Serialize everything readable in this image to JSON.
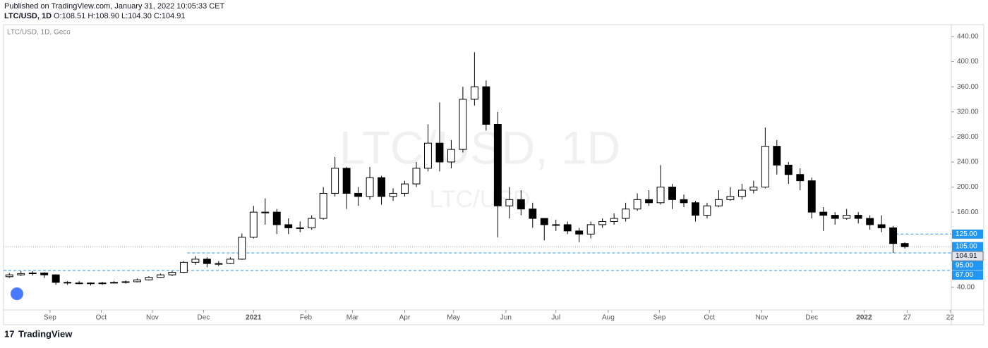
{
  "header": {
    "published": "Published on TradingView.com, January 31, 2022 10:05:33 CET",
    "symbol": "LTC/USD, 1D",
    "ohlc": "O:108.51 H:108.90 L:104.30 C:104.91"
  },
  "chart_data": {
    "type": "candlestick",
    "legend": "LTC/USD, 1D, Geco",
    "watermark": "LTC/USD, 1D",
    "watermark_sub": "LTC/USD",
    "up_color": "#ffffff",
    "down_color": "#000000",
    "outline_color": "#000000",
    "open": [
      57,
      60,
      62,
      63,
      60,
      48,
      47,
      47,
      46,
      47,
      48,
      49,
      52,
      56,
      60,
      64,
      80,
      85,
      78,
      78,
      85,
      120,
      160,
      160,
      140,
      135,
      135,
      150,
      190,
      230,
      190,
      185,
      215,
      185,
      190,
      205,
      230,
      270,
      240,
      260,
      340,
      360,
      300,
      170,
      180,
      165,
      150,
      140,
      140,
      130,
      125,
      140,
      145,
      150,
      165,
      180,
      175,
      200,
      180,
      175,
      155,
      170,
      180,
      185,
      195,
      200,
      265,
      235,
      220,
      210,
      160,
      155,
      150,
      155,
      150,
      140,
      135,
      110
    ],
    "high": [
      63,
      66,
      66,
      64,
      61,
      50,
      50,
      48,
      49,
      50,
      51,
      54,
      58,
      62,
      66,
      82,
      90,
      88,
      82,
      88,
      126,
      170,
      182,
      165,
      150,
      145,
      155,
      200,
      248,
      232,
      200,
      232,
      218,
      198,
      210,
      240,
      300,
      335,
      275,
      360,
      415,
      370,
      320,
      200,
      195,
      175,
      150,
      148,
      145,
      135,
      145,
      150,
      158,
      175,
      190,
      195,
      235,
      205,
      188,
      178,
      175,
      195,
      200,
      205,
      210,
      295,
      275,
      240,
      230,
      215,
      168,
      160,
      165,
      160,
      155,
      155,
      138,
      112
    ],
    "low": [
      55,
      58,
      59,
      55,
      44,
      44,
      45,
      43,
      44,
      46,
      46,
      48,
      51,
      55,
      58,
      63,
      76,
      72,
      74,
      77,
      84,
      118,
      140,
      125,
      125,
      128,
      132,
      148,
      185,
      165,
      170,
      180,
      172,
      178,
      185,
      200,
      225,
      225,
      230,
      255,
      330,
      290,
      120,
      150,
      155,
      135,
      115,
      130,
      125,
      112,
      118,
      135,
      140,
      145,
      162,
      170,
      172,
      165,
      168,
      145,
      150,
      168,
      178,
      180,
      190,
      198,
      220,
      205,
      195,
      150,
      130,
      140,
      148,
      142,
      132,
      128,
      95,
      102
    ],
    "close": [
      60,
      62,
      63,
      60,
      48,
      47,
      47,
      46,
      47,
      48,
      49,
      52,
      56,
      60,
      64,
      80,
      85,
      78,
      78,
      85,
      120,
      160,
      160,
      140,
      135,
      135,
      150,
      190,
      230,
      190,
      185,
      215,
      185,
      190,
      205,
      230,
      270,
      240,
      260,
      340,
      360,
      300,
      170,
      180,
      165,
      150,
      140,
      140,
      130,
      125,
      140,
      145,
      150,
      165,
      180,
      175,
      200,
      180,
      175,
      155,
      170,
      180,
      185,
      195,
      200,
      265,
      235,
      220,
      210,
      160,
      155,
      150,
      155,
      150,
      140,
      135,
      110,
      104.91
    ],
    "xlim": [
      -0.5,
      81
    ],
    "xticks": [
      {
        "value": 3.5,
        "label": "Sep"
      },
      {
        "value": 7.9,
        "label": "Oct"
      },
      {
        "value": 12.3,
        "label": "Nov"
      },
      {
        "value": 16.7,
        "label": "Dec"
      },
      {
        "value": 21,
        "label": "2021"
      },
      {
        "value": 25.5,
        "label": "Feb"
      },
      {
        "value": 29.5,
        "label": "Mar"
      },
      {
        "value": 34,
        "label": "Apr"
      },
      {
        "value": 38.2,
        "label": "May"
      },
      {
        "value": 42.7,
        "label": "Jun"
      },
      {
        "value": 47,
        "label": "Jul"
      },
      {
        "value": 51.5,
        "label": "Aug"
      },
      {
        "value": 55.9,
        "label": "Sep"
      },
      {
        "value": 60.2,
        "label": "Oct"
      },
      {
        "value": 64.7,
        "label": "Nov"
      },
      {
        "value": 69,
        "label": "Dec"
      },
      {
        "value": 73.5,
        "label": "2022"
      },
      {
        "value": 77.2,
        "label": "27"
      },
      {
        "value": 80.9,
        "label": "22"
      }
    ],
    "ylim": [
      4,
      459
    ],
    "yticks": [
      {
        "value": 40,
        "label": "40.00"
      },
      {
        "value": 160,
        "label": "160.00"
      },
      {
        "value": 200,
        "label": "200.00"
      },
      {
        "value": 240,
        "label": "240.00"
      },
      {
        "value": 280,
        "label": "280.00"
      },
      {
        "value": 320,
        "label": "320.00"
      },
      {
        "value": 360,
        "label": "360.00"
      },
      {
        "value": 400,
        "label": "400.00"
      },
      {
        "value": 440,
        "label": "440.00"
      }
    ],
    "price_lines": [
      {
        "value": 125,
        "label": "125.00",
        "color": "#2196f3"
      },
      {
        "value": 104.91,
        "label": "104.91",
        "color": "#9e9e9e"
      },
      {
        "value": 105,
        "label": "105.00",
        "color": "#2196f3"
      },
      {
        "value": 95,
        "label": "95.00",
        "color": "#2196f3"
      },
      {
        "value": 67,
        "label": "67.00",
        "color": "#2196f3"
      }
    ]
  },
  "footer": {
    "brand": "TradingView"
  }
}
